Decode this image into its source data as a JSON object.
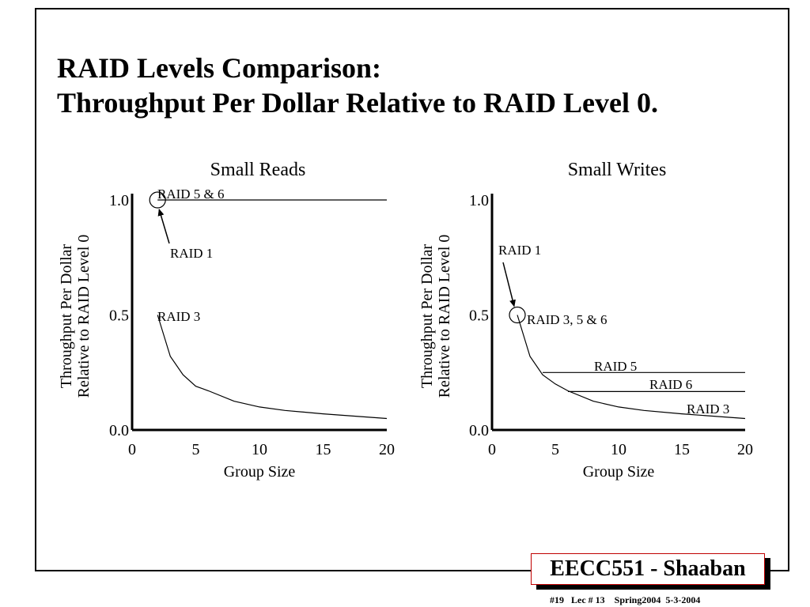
{
  "slide": {
    "title_line1": "RAID Levels Comparison:",
    "title_line2": "Throughput Per Dollar Relative to RAID Level 0.",
    "footer_label": "EECC551 - Shaaban",
    "footer_info": "#19   Lec # 13    Spring2004  5-3-2004"
  },
  "chart_data": [
    {
      "type": "line",
      "title": "Small Reads",
      "xlabel": "Group Size",
      "ylabel_lines": [
        "Throughput Per Dollar",
        "Relative to RAID Level 0"
      ],
      "xlim": [
        0,
        20
      ],
      "ylim": [
        0,
        1.0
      ],
      "xticks": [
        "0",
        "5",
        "10",
        "15",
        "20"
      ],
      "yticks": [
        "0.0",
        "0.5",
        "1.0"
      ],
      "grid": false,
      "series": [
        {
          "name": "RAID 5 & 6",
          "x": [
            2,
            20
          ],
          "y": [
            1.0,
            1.0
          ]
        },
        {
          "name": "RAID 3",
          "x": [
            2,
            3,
            4,
            5,
            6,
            8,
            10,
            12,
            15,
            20
          ],
          "y": [
            0.5,
            0.32,
            0.24,
            0.19,
            0.17,
            0.125,
            0.1,
            0.085,
            0.07,
            0.05
          ]
        }
      ],
      "annotations": [
        {
          "text": "RAID 1",
          "x": 2,
          "y": 1.0
        }
      ]
    },
    {
      "type": "line",
      "title": "Small Writes",
      "xlabel": "Group Size",
      "ylabel_lines": [
        "Throughput Per Dollar",
        "Relative to RAID Level 0"
      ],
      "xlim": [
        0,
        20
      ],
      "ylim": [
        0,
        1.0
      ],
      "xticks": [
        "0",
        "5",
        "10",
        "15",
        "20"
      ],
      "yticks": [
        "0.0",
        "0.5",
        "1.0"
      ],
      "grid": false,
      "series": [
        {
          "name": "RAID 5",
          "x": [
            4,
            20
          ],
          "y": [
            0.25,
            0.25
          ]
        },
        {
          "name": "RAID 6",
          "x": [
            6,
            20
          ],
          "y": [
            0.167,
            0.167
          ]
        },
        {
          "name": "RAID 3",
          "x": [
            2,
            3,
            4,
            5,
            6,
            8,
            10,
            12,
            15,
            20
          ],
          "y": [
            0.5,
            0.32,
            0.24,
            0.2,
            0.17,
            0.125,
            0.1,
            0.085,
            0.07,
            0.05
          ]
        }
      ],
      "annotations": [
        {
          "text": "RAID 1",
          "x": 2,
          "y": 0.5
        },
        {
          "text": "RAID 3, 5 & 6",
          "x": 2,
          "y": 0.5
        }
      ]
    }
  ]
}
